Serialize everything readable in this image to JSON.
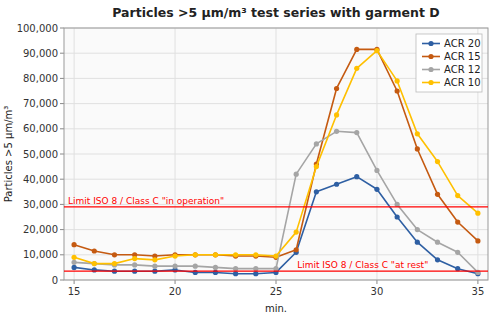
{
  "chart_data": {
    "type": "line",
    "title": "Particles >5 μm/m³ test series with garment D",
    "xlabel": "min.",
    "ylabel": "Particles >5 μm/m³",
    "x": [
      15,
      16,
      17,
      18,
      19,
      20,
      21,
      22,
      23,
      24,
      25,
      26,
      27,
      28,
      29,
      30,
      31,
      32,
      33,
      34,
      35
    ],
    "series": [
      {
        "name": "ACR 20",
        "color": "#2e5fa3",
        "marker": "circle",
        "values": [
          5000,
          4000,
          3500,
          3500,
          3500,
          4000,
          3000,
          3000,
          2500,
          2500,
          3000,
          11000,
          35000,
          38000,
          41000,
          36000,
          25000,
          15000,
          8000,
          4500,
          2500
        ]
      },
      {
        "name": "ACR 15",
        "color": "#c55a11",
        "marker": "circle",
        "values": [
          14000,
          11500,
          10000,
          10000,
          9500,
          10000,
          10000,
          10000,
          9500,
          9500,
          9000,
          12000,
          46000,
          76000,
          91500,
          91500,
          75000,
          52000,
          34000,
          23000,
          15500
        ]
      },
      {
        "name": "ACR 12",
        "color": "#a5a5a5",
        "marker": "circle",
        "values": [
          7000,
          6500,
          6000,
          6000,
          5500,
          5500,
          5500,
          5000,
          4500,
          4500,
          4500,
          42000,
          54000,
          59000,
          58500,
          43500,
          30000,
          20000,
          15000,
          11000,
          3000
        ]
      },
      {
        "name": "ACR 10",
        "color": "#ffc000",
        "marker": "circle",
        "values": [
          9000,
          6500,
          6500,
          8500,
          8000,
          9500,
          10000,
          10000,
          10000,
          10000,
          9500,
          19000,
          45000,
          65500,
          84000,
          91000,
          79000,
          58000,
          47000,
          33500,
          26500
        ]
      }
    ],
    "reference_lines": [
      {
        "value": 29000,
        "label": "Limit ISO 8 / Class C \"in operation\"",
        "color": "#ff0000"
      },
      {
        "value": 3520,
        "label": "Limit ISO 8 / Class C \"at rest\"",
        "color": "#ff0000"
      }
    ],
    "xlim": [
      14.5,
      35.5
    ],
    "ylim": [
      0,
      100000
    ],
    "xticks": [
      15,
      20,
      25,
      30,
      35
    ],
    "yticks": [
      0,
      {
        "value": 10000,
        "label": "10,000"
      },
      {
        "value": 20000,
        "label": "20,000"
      },
      {
        "value": 30000,
        "label": "30,000"
      },
      {
        "value": 40000,
        "label": "40,000"
      },
      {
        "value": 50000,
        "label": "50,000"
      },
      {
        "value": 60000,
        "label": "60,000"
      },
      {
        "value": 70000,
        "label": "70,000"
      },
      {
        "value": 80000,
        "label": "80,000"
      },
      {
        "value": 90000,
        "label": "90,000"
      },
      {
        "value": 100000,
        "label": "100,000"
      }
    ],
    "grid": true,
    "legend": "upper right"
  }
}
